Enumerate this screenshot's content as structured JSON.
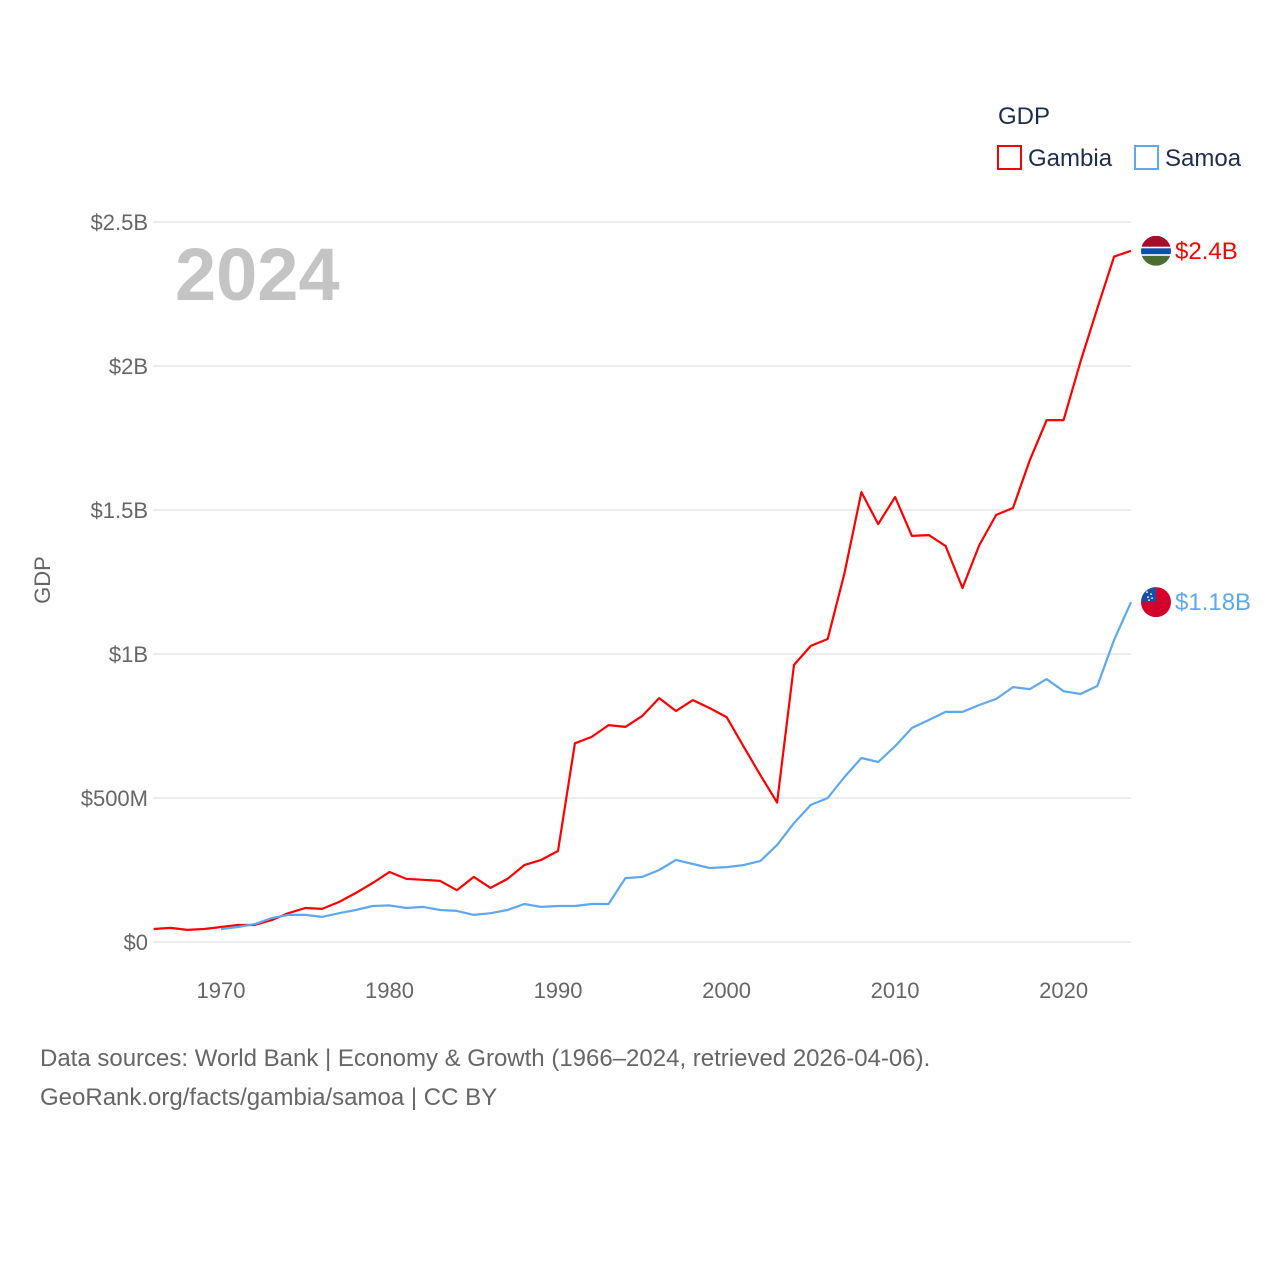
{
  "chart_data": {
    "type": "line",
    "title": "GDP",
    "year_label": "2024",
    "ylabel": "GDP",
    "xlabel": "",
    "xlim": [
      1966,
      2024
    ],
    "ylim": [
      0,
      2.5
    ],
    "y_unit": "billion USD",
    "grid": true,
    "legend_placement": "top-right",
    "legend_title": "GDP",
    "x_ticks": [
      1970,
      1980,
      1990,
      2000,
      2010,
      2020
    ],
    "x_tick_labels": [
      "1970",
      "1980",
      "1990",
      "2000",
      "2010",
      "2020"
    ],
    "y_ticks": [
      0,
      0.5,
      1,
      1.5,
      2,
      2.5
    ],
    "y_tick_labels": [
      "$0",
      "$500M",
      "$1B",
      "$1.5B",
      "$2B",
      "$2.5B"
    ],
    "series": [
      {
        "name": "Gambia",
        "color": "#ff0000",
        "end_label": "$2.4B",
        "start_year": 1966,
        "values": [
          0.045,
          0.049,
          0.042,
          0.045,
          0.052,
          0.059,
          0.059,
          0.076,
          0.1,
          0.118,
          0.115,
          0.139,
          0.17,
          0.205,
          0.243,
          0.219,
          0.216,
          0.212,
          0.18,
          0.226,
          0.188,
          0.219,
          0.267,
          0.285,
          0.316,
          0.69,
          0.712,
          0.753,
          0.747,
          0.785,
          0.847,
          0.802,
          0.84,
          0.812,
          0.781,
          0.68,
          0.58,
          0.484,
          0.962,
          1.028,
          1.052,
          1.281,
          1.562,
          1.451,
          1.545,
          1.41,
          1.413,
          1.375,
          1.229,
          1.378,
          1.483,
          1.507,
          1.674,
          1.812,
          1.812,
          2.014,
          2.2,
          2.38,
          2.4
        ]
      },
      {
        "name": "Samoa",
        "color": "#5ea8f0",
        "end_label": "$1.18B",
        "start_year": 1970,
        "values": [
          0.045,
          0.052,
          0.062,
          0.083,
          0.094,
          0.094,
          0.087,
          0.1,
          0.111,
          0.125,
          0.127,
          0.118,
          0.122,
          0.111,
          0.108,
          0.094,
          0.1,
          0.111,
          0.132,
          0.122,
          0.125,
          0.125,
          0.132,
          0.132,
          0.222,
          0.226,
          0.25,
          0.285,
          0.271,
          0.257,
          0.26,
          0.267,
          0.281,
          0.337,
          0.413,
          0.476,
          0.5,
          0.573,
          0.639,
          0.625,
          0.68,
          0.743,
          0.771,
          0.799,
          0.799,
          0.823,
          0.844,
          0.885,
          0.878,
          0.913,
          0.871,
          0.861,
          0.889,
          1.049,
          1.18
        ]
      }
    ]
  },
  "footer": {
    "line1": "Data sources: World Bank | Economy & Growth (1966–2024, retrieved 2026-04-06).",
    "line2": "GeoRank.org/facts/gambia/samoa | CC BY"
  }
}
